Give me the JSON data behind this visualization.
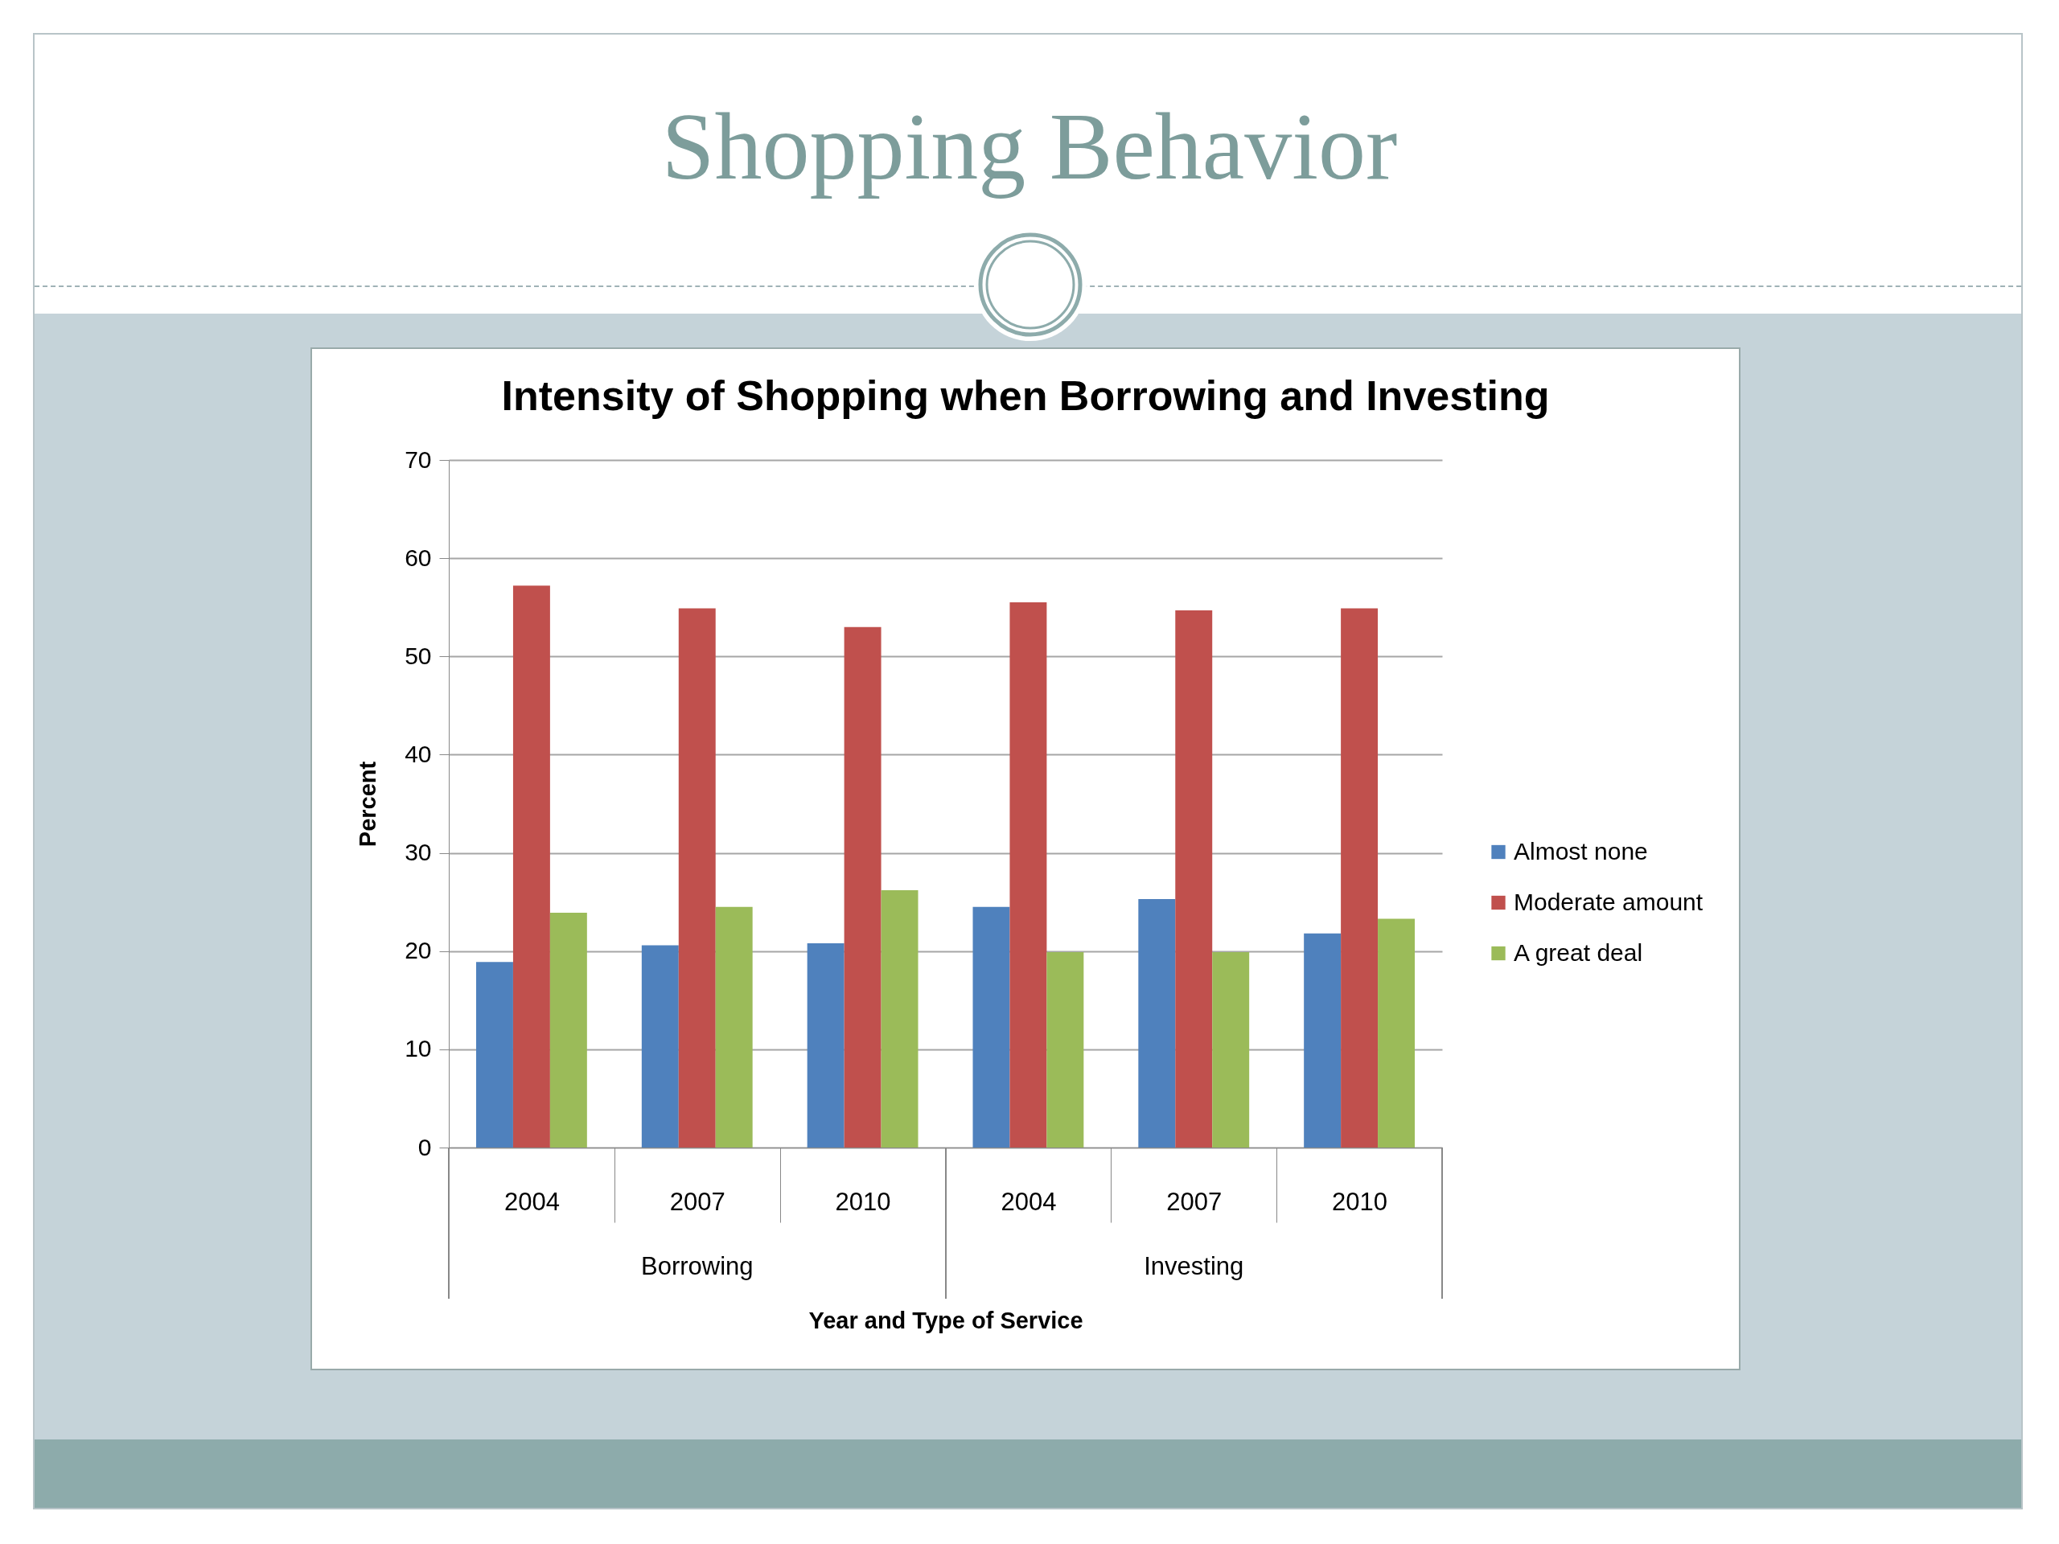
{
  "chart_data": {
    "type": "bar",
    "title": "Shopping Behavior",
    "subtitle": "Intensity of Shopping when Borrowing and Investing",
    "xlabel": "Year and Type of Service",
    "ylabel": "Percent",
    "categories": [
      "2004",
      "2007",
      "2010",
      "2004",
      "2007",
      "2010"
    ],
    "annotations": [
      "Borrowing",
      "Investing"
    ],
    "series": [
      {
        "name": "Almost none",
        "color": "#4f81bd",
        "values": [
          18.9,
          20.6,
          20.8,
          24.5,
          25.3,
          21.8
        ]
      },
      {
        "name": "Moderate amount",
        "color": "#c0504d",
        "values": [
          57.2,
          54.9,
          53.0,
          55.5,
          54.7,
          54.9
        ]
      },
      {
        "name": "A great deal",
        "color": "#9bbb59",
        "values": [
          23.9,
          24.5,
          26.2,
          19.9,
          19.9,
          23.3
        ]
      }
    ],
    "ylim": [
      0,
      70
    ],
    "yticks": [
      0,
      10,
      20,
      30,
      40,
      50,
      60,
      70
    ],
    "grid": "y",
    "legend": "right"
  }
}
